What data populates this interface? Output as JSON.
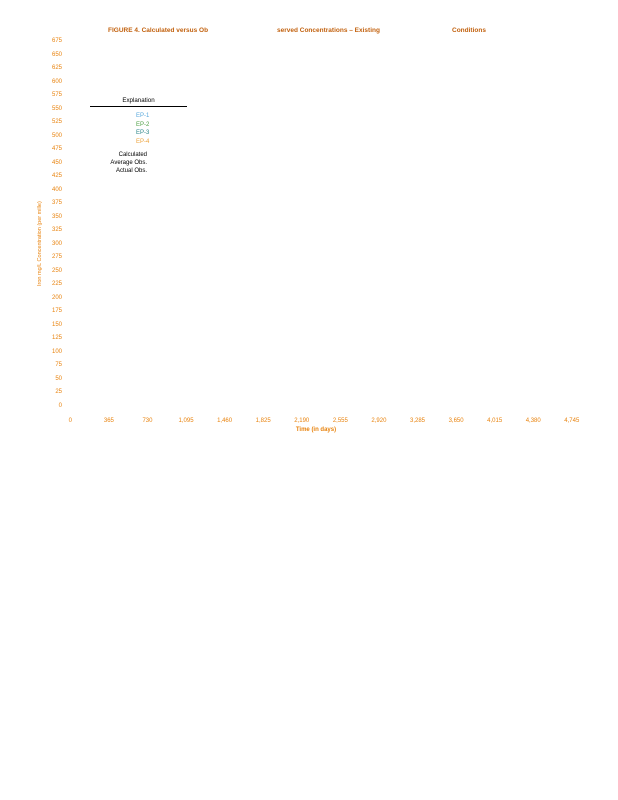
{
  "colors": {
    "title": "#C2610E",
    "axis_text": "#E8820C"
  },
  "chart_data": {
    "type": "line",
    "title": "FIGURE 4. Calculated versus Observed Concentrations – Existing Conditions",
    "title_segments": [
      "FIGURE 4. Calculated versus Ob",
      "served Concentrations – Existing",
      "Conditions"
    ],
    "xlabel": "Time (in days)",
    "ylabel": "Iron mg/L Concentration (per mille)",
    "xlim": [
      0,
      4745
    ],
    "ylim": [
      0,
      675
    ],
    "x_tick_step": 365,
    "y_tick_step": 25,
    "grid": false,
    "x_ticks": [
      "0",
      "365",
      "730",
      "1,095",
      "1,460",
      "1,825",
      "2,190",
      "2,555",
      "2,920",
      "3,285",
      "3,650",
      "4,015",
      "4,380",
      "4,745"
    ],
    "y_ticks": [
      "675",
      "650",
      "625",
      "600",
      "575",
      "550",
      "525",
      "500",
      "475",
      "450",
      "425",
      "400",
      "375",
      "350",
      "325",
      "300",
      "275",
      "250",
      "225",
      "200",
      "175",
      "150",
      "125",
      "100",
      "75",
      "50",
      "25",
      "0"
    ],
    "legend_position": "upper-left-inside",
    "series": [
      {
        "name": "EP-1",
        "color": "#58A8DC",
        "values": []
      },
      {
        "name": "EP-2",
        "color": "#4FA046",
        "values": []
      },
      {
        "name": "EP-3",
        "color": "#2B8588",
        "values": []
      },
      {
        "name": "EP-4",
        "color": "#ECA33D",
        "values": []
      },
      {
        "name": "Calculated",
        "color": "#000000",
        "values": []
      },
      {
        "name": "Average Obs.",
        "color": "#000000",
        "values": []
      },
      {
        "name": "Actual Obs.",
        "color": "#000000",
        "values": []
      }
    ]
  },
  "legend": {
    "title": "Explanation",
    "items": [
      {
        "label": "EP-1",
        "color": "#58A8DC"
      },
      {
        "label": "EP-2",
        "color": "#4FA046"
      },
      {
        "label": "EP-3",
        "color": "#2B8588"
      },
      {
        "label": "EP-4",
        "color": "#ECA33D"
      },
      {
        "label": "Calculated",
        "color": "#000000"
      },
      {
        "label": "Average Obs.",
        "color": "#000000"
      },
      {
        "label": "Actual Obs.",
        "color": "#000000"
      }
    ]
  }
}
